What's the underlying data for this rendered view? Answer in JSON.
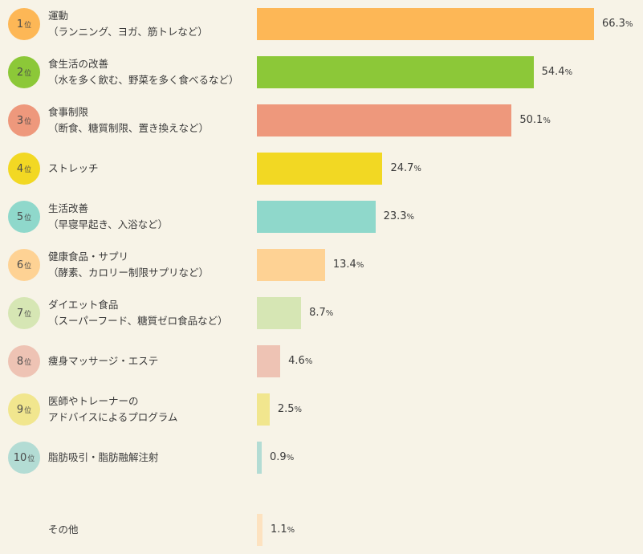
{
  "chart_data": {
    "type": "bar",
    "orientation": "horizontal",
    "rank_unit": "位",
    "value_unit": "%",
    "xlim": [
      0,
      66.3
    ],
    "grid": false,
    "rows": [
      {
        "rank": "1",
        "line1": "運動",
        "line2": "（ランニング、ヨガ、筋トレなど）",
        "value": 66.3,
        "value_text": "66.3",
        "bar_color": "#fdb756",
        "badge_color": "#fdb756"
      },
      {
        "rank": "2",
        "line1": "食生活の改善",
        "line2": "（水を多く飲む、野菜を多く食べるなど）",
        "value": 54.4,
        "value_text": "54.4",
        "bar_color": "#8cc838",
        "badge_color": "#8cc838"
      },
      {
        "rank": "3",
        "line1": "食事制限",
        "line2": "（断食、糖質制限、置き換えなど）",
        "value": 50.1,
        "value_text": "50.1",
        "bar_color": "#ee987c",
        "badge_color": "#ee987c"
      },
      {
        "rank": "4",
        "line1": "ストレッチ",
        "line2": "",
        "value": 24.7,
        "value_text": "24.7",
        "bar_color": "#f2d823",
        "badge_color": "#f2d823"
      },
      {
        "rank": "5",
        "line1": "生活改善",
        "line2": "（早寝早起き、入浴など）",
        "value": 23.3,
        "value_text": "23.3",
        "bar_color": "#8fd8cb",
        "badge_color": "#8fd8cb"
      },
      {
        "rank": "6",
        "line1": "健康食品・サプリ",
        "line2": "（酵素、カロリー制限サプリなど）",
        "value": 13.4,
        "value_text": "13.4",
        "bar_color": "#fed294",
        "badge_color": "#fed294"
      },
      {
        "rank": "7",
        "line1": "ダイエット食品",
        "line2": "（スーパーフード、糖質ゼロ食品など）",
        "value": 8.7,
        "value_text": "8.7",
        "bar_color": "#d6e6b4",
        "badge_color": "#d6e6b4"
      },
      {
        "rank": "8",
        "line1": "痩身マッサージ・エステ",
        "line2": "",
        "value": 4.6,
        "value_text": "4.6",
        "bar_color": "#eec3b4",
        "badge_color": "#eec3b4"
      },
      {
        "rank": "9",
        "line1": "医師やトレーナーの",
        "line2": "アドバイスによるプログラム",
        "value": 2.5,
        "value_text": "2.5",
        "bar_color": "#f1e68e",
        "badge_color": "#f1e68e"
      },
      {
        "rank": "10",
        "line1": "脂肪吸引・脂肪融解注射",
        "line2": "",
        "value": 0.9,
        "value_text": "0.9",
        "bar_color": "#b3dcd4",
        "badge_color": "#b3dcd4"
      },
      {
        "rank": "",
        "line1": "その他",
        "line2": "",
        "value": 1.1,
        "value_text": "1.1",
        "bar_color": "#fde2c0",
        "badge_color": ""
      }
    ]
  }
}
